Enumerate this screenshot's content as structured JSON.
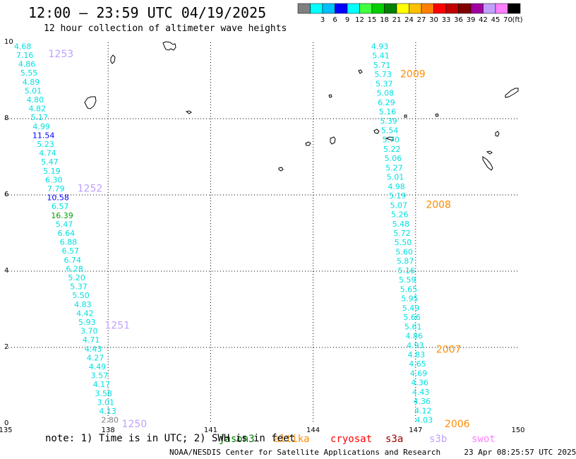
{
  "header": {
    "title": "12:00 — 23:59 UTC 04/19/2025",
    "subtitle": "12 hour collection of altimeter wave heights"
  },
  "colorbar": {
    "unit": "(ft)",
    "entries": [
      {
        "label": "",
        "color": "#808080"
      },
      {
        "label": "3",
        "color": "#00ffff"
      },
      {
        "label": "6",
        "color": "#00c0ff"
      },
      {
        "label": "9",
        "color": "#0000ff"
      },
      {
        "label": "12",
        "color": "#00ffff"
      },
      {
        "label": "15",
        "color": "#40ff40"
      },
      {
        "label": "18",
        "color": "#00d000"
      },
      {
        "label": "21",
        "color": "#008000"
      },
      {
        "label": "24",
        "color": "#ffff00"
      },
      {
        "label": "27",
        "color": "#ffc000"
      },
      {
        "label": "30",
        "color": "#ff8000"
      },
      {
        "label": "33",
        "color": "#ff0000"
      },
      {
        "label": "36",
        "color": "#c00000"
      },
      {
        "label": "39",
        "color": "#800000"
      },
      {
        "label": "42",
        "color": "#a000a0"
      },
      {
        "label": "45",
        "color": "#c0a0ff"
      },
      {
        "label": "70",
        "color": "#ff80ff"
      },
      {
        "label": "",
        "color": "#000000"
      }
    ]
  },
  "axes": {
    "x_ticks": [
      "135",
      "138",
      "141",
      "144",
      "147",
      "150"
    ],
    "y_ticks": [
      "0",
      "2",
      "4",
      "6",
      "8",
      "10"
    ],
    "x_range": [
      135,
      150
    ],
    "y_range": [
      0,
      10
    ]
  },
  "tracks": [
    {
      "name": "west",
      "color": "#00e0e0",
      "start": [
        135.5,
        9.9
      ],
      "end": [
        138.05,
        0.1
      ],
      "values": [
        "4.68",
        "7.16",
        "4.86",
        "5.55",
        "4.89",
        "5.01",
        "4.80",
        "4.82",
        "5.17",
        "4.99",
        "11.54",
        "5.23",
        "4.74",
        "5.47",
        "5.19",
        "6.30",
        "7.79",
        "10.58",
        "6.57",
        "16.39",
        "5.47",
        "6.64",
        "6.88",
        "6.57",
        "6.74",
        "6.28",
        "5.20",
        "5.37",
        "5.50",
        "4.83",
        "4.42",
        "5.93",
        "3.70",
        "4.71",
        "4.43",
        "4.27",
        "4.49",
        "3.57",
        "4.17",
        "3.58",
        "3.01",
        "4.13",
        "2.80"
      ],
      "colors": {
        "10": "#0000ff",
        "17": "#0000ff",
        "19": "#00a000",
        "42": "#808080"
      },
      "pass_labels": [
        {
          "text": "1253",
          "x": 136.25,
          "y": 9.7,
          "color": "#c0a0ff"
        },
        {
          "text": "1252",
          "x": 137.1,
          "y": 6.18,
          "color": "#c0a0ff"
        },
        {
          "text": "1251",
          "x": 137.9,
          "y": 2.58,
          "color": "#c0a0ff"
        },
        {
          "text": "1250",
          "x": 138.4,
          "y": 0.0,
          "color": "#c0a0ff"
        }
      ]
    },
    {
      "name": "east",
      "color": "#00e0e0",
      "start": [
        145.95,
        9.9
      ],
      "end": [
        147.25,
        0.1
      ],
      "values": [
        "4.93",
        "5.41",
        "5.71",
        "5.73",
        "5.37",
        "5.08",
        "6.29",
        "5.16",
        "5.39",
        "5.54",
        "5.70",
        "5.22",
        "5.06",
        "5.27",
        "5.01",
        "4.98",
        "5.19",
        "5.07",
        "5.26",
        "5.48",
        "5.72",
        "5.50",
        "5.60",
        "5.87",
        "5.16",
        "5.59",
        "5.65",
        "5.95",
        "5.49",
        "5.66",
        "5.61",
        "4.86",
        "4.93",
        "4.83",
        "4.65",
        "4.69",
        "4.36",
        "4.43",
        "4.36",
        "4.12",
        "4.03"
      ],
      "colors": {},
      "pass_labels": [
        {
          "text": "2009",
          "x": 146.55,
          "y": 9.18,
          "color": "#ff8c00"
        },
        {
          "text": "2008",
          "x": 147.3,
          "y": 5.75,
          "color": "#ff8c00"
        },
        {
          "text": "2007",
          "x": 147.6,
          "y": 1.95,
          "color": "#ff8c00"
        },
        {
          "text": "2006",
          "x": 147.85,
          "y": 0.0,
          "color": "#ff8c00"
        }
      ]
    }
  ],
  "footer": {
    "note_prefix": "note: 1) Time is in UTC; 2) SWH is in feet",
    "satellites": [
      {
        "name": "jason3",
        "color": "#008000"
      },
      {
        "name": "altika",
        "color": "#ff8c00"
      },
      {
        "name": "cryosat",
        "color": "#ff0000"
      },
      {
        "name": "s3a",
        "color": "#a00000"
      },
      {
        "name": "s3b",
        "color": "#c0a0ff"
      },
      {
        "name": "swot",
        "color": "#ff80ff"
      }
    ],
    "credit": "NOAA/NESDIS Center for Satellite Applications and Research",
    "timestamp": "23 Apr 08:25:57 UTC 2025"
  }
}
